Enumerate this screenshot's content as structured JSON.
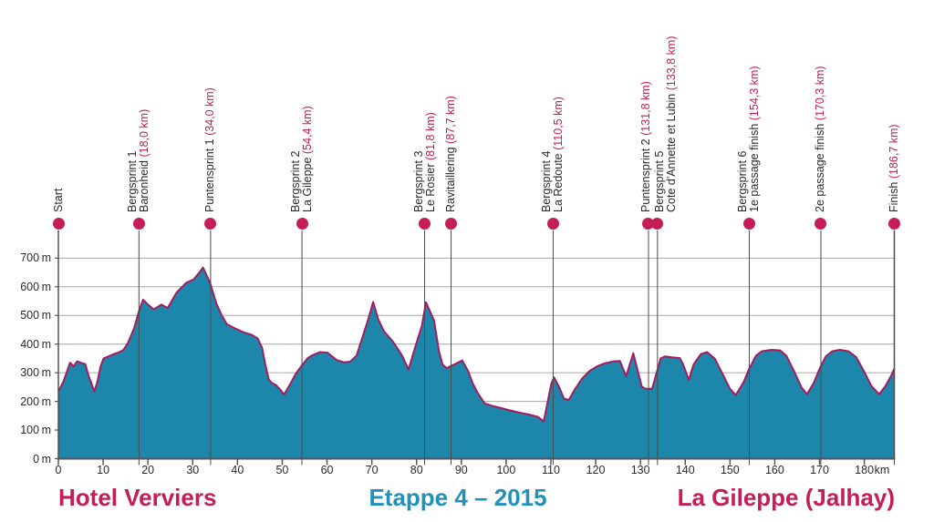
{
  "chart_data": {
    "type": "area",
    "title": "Etappe 4 – 2015",
    "start_caption": "Hotel Verviers",
    "finish_caption": "La Gileppe (Jalhay)",
    "x_unit": "km",
    "y_unit": "m",
    "xlim": [
      0,
      186.7
    ],
    "ylim": [
      0,
      780
    ],
    "x_ticks": [
      0,
      10,
      20,
      30,
      40,
      50,
      60,
      70,
      80,
      90,
      100,
      110,
      120,
      130,
      140,
      150,
      160,
      170,
      180
    ],
    "y_ticks": [
      0,
      100,
      200,
      300,
      400,
      500,
      600,
      700
    ],
    "grid": true,
    "legend_position": "none",
    "series_name": "elevation-profile",
    "profile_km_m": [
      [
        0,
        234
      ],
      [
        1.2,
        272
      ],
      [
        2.6,
        335
      ],
      [
        3.4,
        322
      ],
      [
        4.2,
        340
      ],
      [
        5.2,
        334
      ],
      [
        6,
        330
      ],
      [
        6.7,
        291
      ],
      [
        7.4,
        263
      ],
      [
        8,
        234
      ],
      [
        8.7,
        268
      ],
      [
        9.4,
        320
      ],
      [
        10.1,
        350
      ],
      [
        11.2,
        357
      ],
      [
        12.5,
        366
      ],
      [
        13.5,
        371
      ],
      [
        14.5,
        379
      ],
      [
        15.5,
        403
      ],
      [
        16.9,
        455
      ],
      [
        17.9,
        510
      ],
      [
        18.9,
        555
      ],
      [
        20.2,
        535
      ],
      [
        21.3,
        521
      ],
      [
        23,
        538
      ],
      [
        24.4,
        526
      ],
      [
        26.4,
        580
      ],
      [
        28.5,
        613
      ],
      [
        30.2,
        626
      ],
      [
        31.5,
        650
      ],
      [
        32.3,
        667
      ],
      [
        33.9,
        613
      ],
      [
        35.3,
        541
      ],
      [
        36.5,
        500
      ],
      [
        37.6,
        470
      ],
      [
        39.4,
        455
      ],
      [
        41.4,
        441
      ],
      [
        43.1,
        433
      ],
      [
        44.5,
        420
      ],
      [
        45.5,
        387
      ],
      [
        46.2,
        330
      ],
      [
        47,
        276
      ],
      [
        47.7,
        264
      ],
      [
        48.6,
        257
      ],
      [
        49.6,
        240
      ],
      [
        50.4,
        224
      ],
      [
        51.9,
        264
      ],
      [
        53,
        296
      ],
      [
        54.4,
        326
      ],
      [
        55.7,
        351
      ],
      [
        56.7,
        361
      ],
      [
        58.4,
        372
      ],
      [
        60.1,
        370
      ],
      [
        62.2,
        344
      ],
      [
        63.9,
        336
      ],
      [
        65.2,
        339
      ],
      [
        66.6,
        360
      ],
      [
        67.9,
        423
      ],
      [
        69.3,
        492
      ],
      [
        70.3,
        547
      ],
      [
        71.4,
        488
      ],
      [
        72.7,
        445
      ],
      [
        74.8,
        407
      ],
      [
        76.8,
        359
      ],
      [
        78.2,
        311
      ],
      [
        79.5,
        380
      ],
      [
        81.2,
        465
      ],
      [
        82.1,
        546
      ],
      [
        83.9,
        482
      ],
      [
        85,
        375
      ],
      [
        85.8,
        329
      ],
      [
        86.7,
        316
      ],
      [
        88.3,
        328
      ],
      [
        90.2,
        343
      ],
      [
        91.5,
        306
      ],
      [
        92.5,
        264
      ],
      [
        93.7,
        228
      ],
      [
        95.2,
        193
      ],
      [
        97.2,
        183
      ],
      [
        99.3,
        175
      ],
      [
        101.3,
        167
      ],
      [
        103.3,
        160
      ],
      [
        105.4,
        153
      ],
      [
        107.1,
        146
      ],
      [
        108.4,
        130
      ],
      [
        110.1,
        262
      ],
      [
        110.7,
        284
      ],
      [
        111.9,
        248
      ],
      [
        112.9,
        210
      ],
      [
        114,
        205
      ],
      [
        115.2,
        238
      ],
      [
        117,
        280
      ],
      [
        118.6,
        306
      ],
      [
        120.3,
        322
      ],
      [
        122,
        333
      ],
      [
        124.1,
        340
      ],
      [
        125.4,
        341
      ],
      [
        126.8,
        288
      ],
      [
        128.4,
        368
      ],
      [
        130.3,
        252
      ],
      [
        131.1,
        244
      ],
      [
        132.6,
        244
      ],
      [
        133.8,
        310
      ],
      [
        134.5,
        350
      ],
      [
        135.5,
        357
      ],
      [
        137,
        354
      ],
      [
        138.8,
        351
      ],
      [
        139.5,
        330
      ],
      [
        140.8,
        275
      ],
      [
        141.9,
        330
      ],
      [
        143.5,
        365
      ],
      [
        144.9,
        372
      ],
      [
        146.6,
        349
      ],
      [
        148.3,
        297
      ],
      [
        150,
        244
      ],
      [
        151.3,
        222
      ],
      [
        153,
        266
      ],
      [
        154.4,
        317
      ],
      [
        155.8,
        359
      ],
      [
        157.1,
        375
      ],
      [
        159.2,
        380
      ],
      [
        161.2,
        378
      ],
      [
        162.6,
        359
      ],
      [
        164.3,
        306
      ],
      [
        166,
        248
      ],
      [
        167.2,
        225
      ],
      [
        168.7,
        264
      ],
      [
        170.1,
        317
      ],
      [
        171.4,
        357
      ],
      [
        172.8,
        375
      ],
      [
        174.5,
        380
      ],
      [
        176.5,
        375
      ],
      [
        178.2,
        354
      ],
      [
        179.9,
        306
      ],
      [
        181.6,
        253
      ],
      [
        183.3,
        225
      ],
      [
        184.7,
        253
      ],
      [
        186,
        290
      ],
      [
        186.7,
        314
      ]
    ],
    "waypoints": [
      {
        "name": "Start",
        "detail": "",
        "km": 0,
        "distance_label": ""
      },
      {
        "name": "Bergsprint 1",
        "detail": "Baronheid",
        "km": 18.0,
        "distance_label": "(18,0 km)"
      },
      {
        "name": "Puntensprint 1",
        "detail": "",
        "km": 34.0,
        "distance_label": "(34,0 km)"
      },
      {
        "name": "Bergsprint 2",
        "detail": "La Gileppe",
        "km": 54.4,
        "distance_label": "(54,4 km)"
      },
      {
        "name": "Bergsprint 3",
        "detail": "Le Rosier",
        "km": 81.8,
        "distance_label": "(81,8 km)"
      },
      {
        "name": "Ravitaillering",
        "detail": "",
        "km": 87.7,
        "distance_label": "(87,7 km)"
      },
      {
        "name": "Bergsprint 4",
        "detail": "La Redoute",
        "km": 110.5,
        "distance_label": "(110,5 km)"
      },
      {
        "name": "Puntensprint 2",
        "detail": "",
        "km": 131.8,
        "distance_label": "(131,8 km)"
      },
      {
        "name": "Bergsprint 5",
        "detail": "Cote d'Annette et Lubin",
        "km": 133.8,
        "distance_label": "(133,8 km)"
      },
      {
        "name": "Bergsprint 6",
        "detail": "1e passage finish",
        "km": 154.3,
        "distance_label": "(154,3 km)"
      },
      {
        "name": "2e passage finish",
        "detail": "",
        "km": 170.3,
        "distance_label": "(170,3 km)"
      },
      {
        "name": "Finish",
        "detail": "",
        "km": 186.7,
        "distance_label": "(186,7 km)"
      }
    ],
    "colors": {
      "area_fill_teal": "#1d87ab",
      "profile_stroke_magenta": "#a01d5f",
      "accent_pink": "#c41d58",
      "title_teal": "#2191ba",
      "axis_text": "#2b2a29",
      "gridline_gray": "#a6a6a6",
      "waypoint_line": "#4b4b4b",
      "frame_dark": "#55565a"
    }
  }
}
